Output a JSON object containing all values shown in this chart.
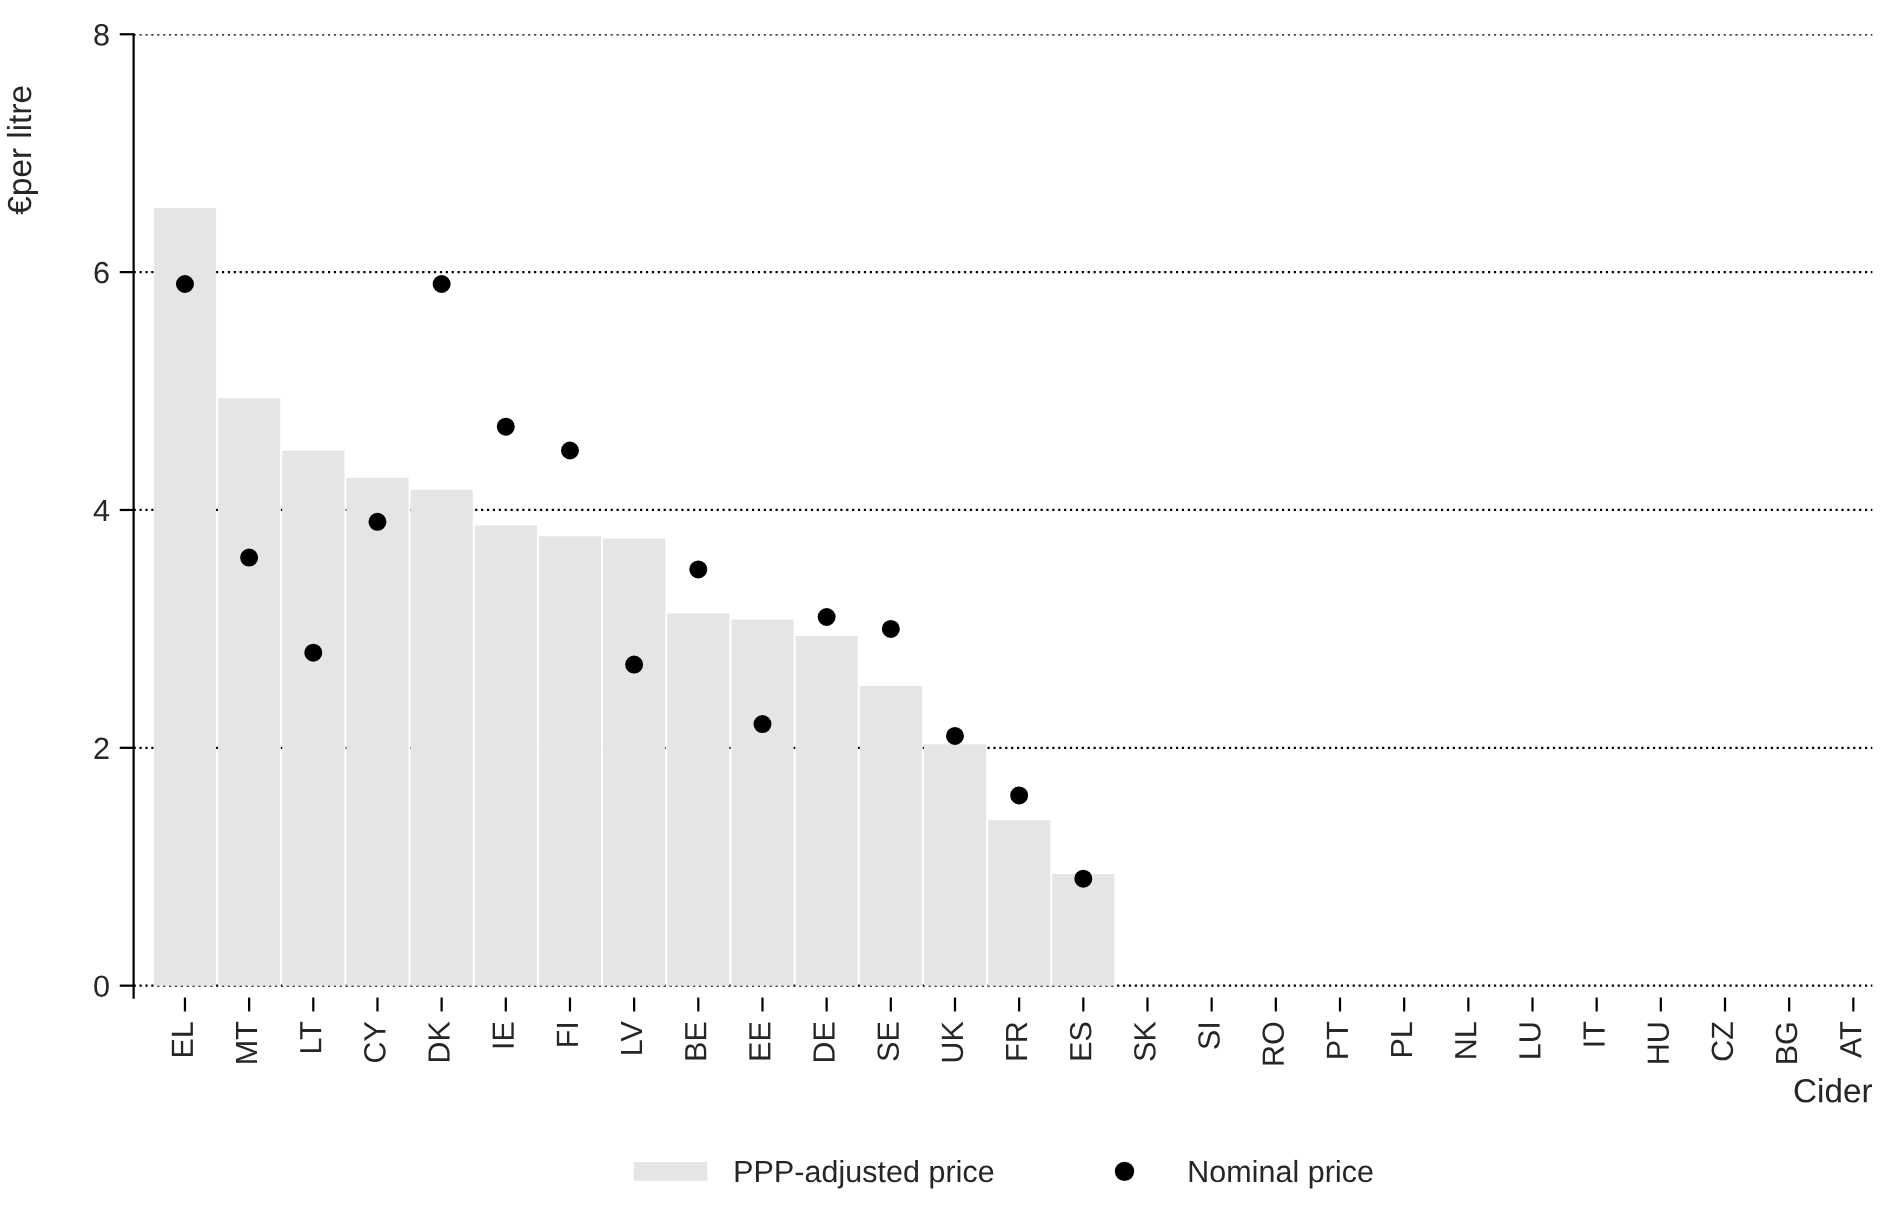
{
  "chart_data": {
    "type": "bar",
    "xlabel": "Cider",
    "ylabel": "€per litre",
    "categories": [
      "EL",
      "MT",
      "LT",
      "CY",
      "DK",
      "IE",
      "FI",
      "LV",
      "BE",
      "EE",
      "DE",
      "SE",
      "UK",
      "FR",
      "ES",
      "SK",
      "SI",
      "RO",
      "PT",
      "PL",
      "NL",
      "LU",
      "IT",
      "HU",
      "CZ",
      "BG",
      "AT"
    ],
    "series": [
      {
        "name": "PPP-adjusted price",
        "color": "#e5e5e5",
        "values": [
          6.54,
          4.94,
          4.5,
          4.27,
          4.17,
          3.87,
          3.78,
          3.76,
          3.13,
          3.08,
          2.94,
          2.52,
          2.03,
          1.39,
          0.94,
          null,
          null,
          null,
          null,
          null,
          null,
          null,
          null,
          null,
          null,
          null,
          null
        ]
      },
      {
        "name": "Nominal price",
        "type": "scatter",
        "color": "#000000",
        "marker": "circle",
        "values": [
          5.9,
          3.6,
          2.8,
          3.9,
          5.9,
          4.7,
          4.5,
          2.7,
          3.5,
          2.2,
          3.1,
          3.0,
          2.1,
          1.6,
          0.9,
          null,
          null,
          null,
          null,
          null,
          null,
          null,
          null,
          null,
          null,
          null,
          null
        ]
      }
    ],
    "ylim": [
      -0.1,
      8
    ],
    "yticks": [
      0,
      2,
      4,
      6,
      8
    ],
    "grid": "y",
    "line_style": "dotted",
    "legend": "bottom"
  }
}
